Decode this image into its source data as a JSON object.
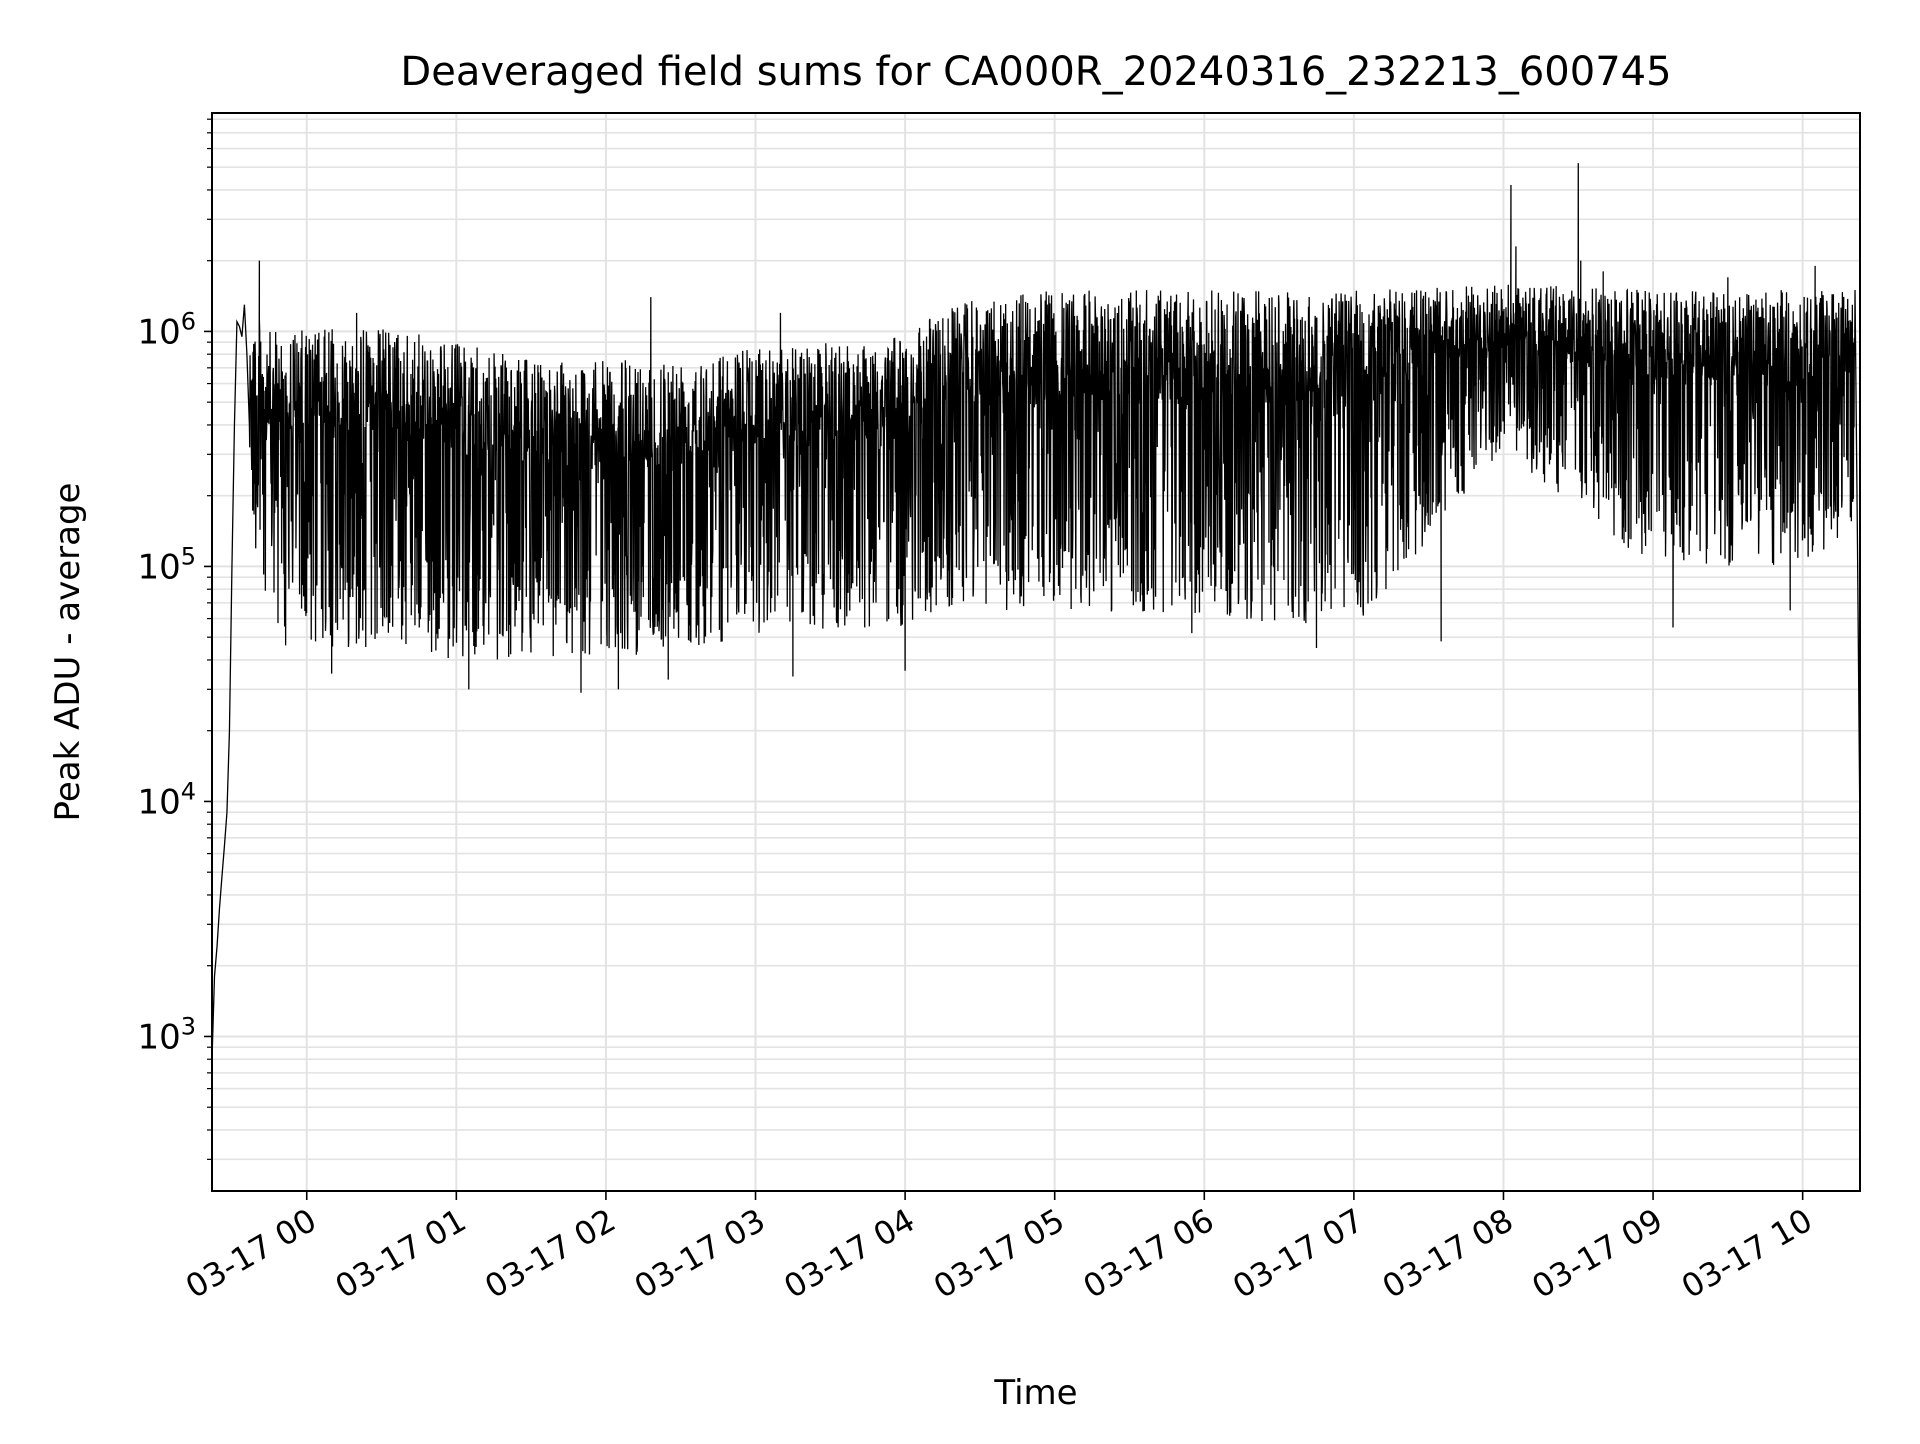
{
  "chart_data": {
    "type": "line",
    "title": "Deaveraged field sums for CA000R_20240316_232213_600745",
    "xlabel": "Time",
    "ylabel": "Peak ADU - average",
    "yscale": "log",
    "xlim": [
      "2024-03-16 23:22",
      "2024-03-17 10:23"
    ],
    "ylim": [
      220,
      8500000
    ],
    "x_ticks": [
      "03-17 00",
      "03-17 01",
      "03-17 02",
      "03-17 03",
      "03-17 04",
      "03-17 05",
      "03-17 06",
      "03-17 07",
      "03-17 08",
      "03-17 09",
      "03-17 10"
    ],
    "y_ticks": [
      {
        "base": "10",
        "exp": "3",
        "value": 1000
      },
      {
        "base": "10",
        "exp": "4",
        "value": 10000
      },
      {
        "base": "10",
        "exp": "5",
        "value": 100000
      },
      {
        "base": "10",
        "exp": "6",
        "value": 1000000
      }
    ],
    "grid": true,
    "line_color": "#000000",
    "series": [
      {
        "start_points": [
          {
            "x": "2024-03-16 23:22",
            "y": 800
          },
          {
            "x": "2024-03-16 23:23",
            "y": 1800
          },
          {
            "x": "2024-03-16 23:24",
            "y": 2400
          },
          {
            "x": "2024-03-16 23:25",
            "y": 3500
          },
          {
            "x": "2024-03-16 23:26",
            "y": 4800
          },
          {
            "x": "2024-03-16 23:27",
            "y": 6500
          },
          {
            "x": "2024-03-16 23:28",
            "y": 9000
          },
          {
            "x": "2024-03-16 23:29",
            "y": 20000
          },
          {
            "x": "2024-03-16 23:30",
            "y": 100000
          },
          {
            "x": "2024-03-16 23:31",
            "y": 400000
          },
          {
            "x": "2024-03-16 23:32",
            "y": 1100000
          },
          {
            "x": "2024-03-16 23:33",
            "y": 1050000
          },
          {
            "x": "2024-03-16 23:34",
            "y": 950000
          },
          {
            "x": "2024-03-16 23:35",
            "y": 1300000
          },
          {
            "x": "2024-03-16 23:36",
            "y": 800000
          },
          {
            "x": "2024-03-16 23:37",
            "y": 400000
          }
        ],
        "end_points": [
          {
            "x": "2024-03-17 10:21",
            "y": 1500000
          },
          {
            "x": "2024-03-17 10:22",
            "y": 120000
          },
          {
            "x": "2024-03-17 10:23",
            "y": 7000
          }
        ],
        "envelope": [
          {
            "x": "2024-03-16 23:37",
            "lo": 120000,
            "hi": 1300000
          },
          {
            "x": "2024-03-16 23:45",
            "lo": 45000,
            "hi": 1000000
          },
          {
            "x": "2024-03-17 00:30",
            "lo": 45000,
            "hi": 1050000
          },
          {
            "x": "2024-03-17 01:00",
            "lo": 40000,
            "hi": 900000
          },
          {
            "x": "2024-03-17 01:30",
            "lo": 40000,
            "hi": 750000
          },
          {
            "x": "2024-03-17 02:00",
            "lo": 40000,
            "hi": 750000
          },
          {
            "x": "2024-03-17 02:30",
            "lo": 45000,
            "hi": 800000
          },
          {
            "x": "2024-03-17 03:00",
            "lo": 50000,
            "hi": 850000
          },
          {
            "x": "2024-03-17 04:00",
            "lo": 55000,
            "hi": 950000
          },
          {
            "x": "2024-03-17 04:15",
            "lo": 65000,
            "hi": 1300000
          },
          {
            "x": "2024-03-17 05:00",
            "lo": 65000,
            "hi": 1500000
          },
          {
            "x": "2024-03-17 06:00",
            "lo": 60000,
            "hi": 1500000
          },
          {
            "x": "2024-03-17 07:00",
            "lo": 55000,
            "hi": 1500000
          },
          {
            "x": "2024-03-17 08:00",
            "lo": 300000,
            "hi": 1600000
          },
          {
            "x": "2024-03-17 09:00",
            "lo": 100000,
            "hi": 1500000
          },
          {
            "x": "2024-03-17 10:00",
            "lo": 100000,
            "hi": 1500000
          },
          {
            "x": "2024-03-17 10:21",
            "lo": 150000,
            "hi": 1500000
          }
        ],
        "spikes": [
          {
            "x": "2024-03-16 23:41",
            "y": 2000000
          },
          {
            "x": "2024-03-17 00:10",
            "y": 35000
          },
          {
            "x": "2024-03-17 00:20",
            "y": 1200000
          },
          {
            "x": "2024-03-17 01:05",
            "y": 30000
          },
          {
            "x": "2024-03-17 01:50",
            "y": 29000
          },
          {
            "x": "2024-03-17 02:05",
            "y": 30000
          },
          {
            "x": "2024-03-17 02:18",
            "y": 1400000
          },
          {
            "x": "2024-03-17 02:25",
            "y": 33000
          },
          {
            "x": "2024-03-17 03:10",
            "y": 1200000
          },
          {
            "x": "2024-03-17 03:15",
            "y": 34000
          },
          {
            "x": "2024-03-17 04:00",
            "y": 36000
          },
          {
            "x": "2024-03-17 05:55",
            "y": 52000
          },
          {
            "x": "2024-03-17 06:45",
            "y": 45000
          },
          {
            "x": "2024-03-17 07:35",
            "y": 48000
          },
          {
            "x": "2024-03-17 08:03",
            "y": 4200000
          },
          {
            "x": "2024-03-17 08:05",
            "y": 2300000
          },
          {
            "x": "2024-03-17 08:30",
            "y": 5200000
          },
          {
            "x": "2024-03-17 08:31",
            "y": 2000000
          },
          {
            "x": "2024-03-17 08:40",
            "y": 1800000
          },
          {
            "x": "2024-03-17 09:08",
            "y": 55000
          },
          {
            "x": "2024-03-17 09:30",
            "y": 1700000
          },
          {
            "x": "2024-03-17 09:55",
            "y": 65000
          },
          {
            "x": "2024-03-17 10:05",
            "y": 1900000
          }
        ]
      }
    ]
  }
}
